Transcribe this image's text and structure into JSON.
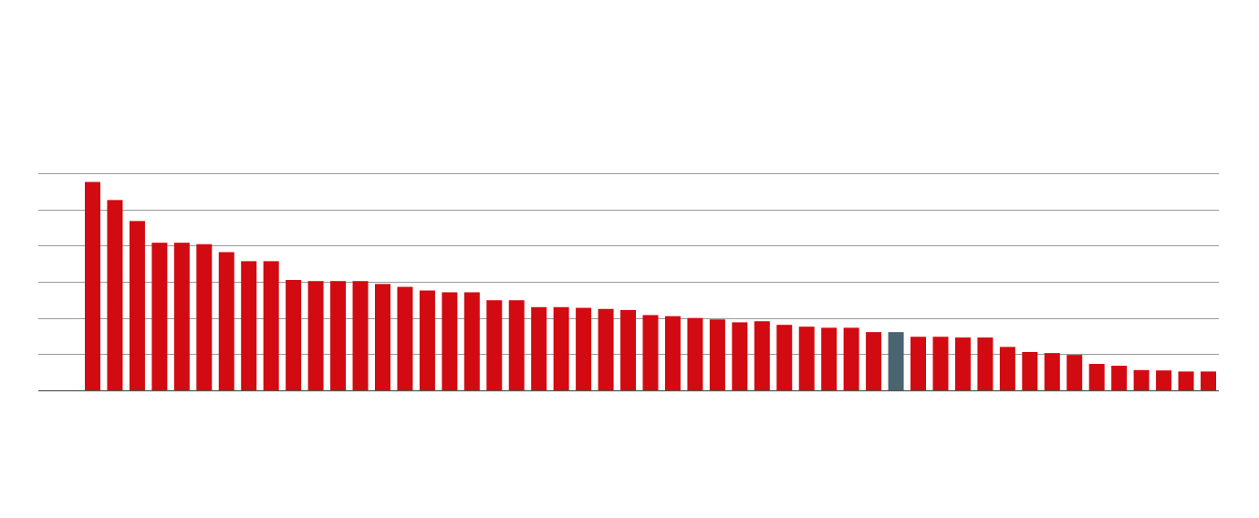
{
  "colors": {
    "bar": "#d20a11",
    "highlight": "#4a6470",
    "grid": "#9a9a9a",
    "axis": "#555555",
    "background": "#ffffff"
  },
  "chart_data": {
    "type": "bar",
    "title": "",
    "xlabel": "",
    "ylabel": "",
    "ylim": [
      0,
      60
    ],
    "grid": true,
    "gridlines": [
      10,
      20,
      30,
      40,
      50,
      60
    ],
    "highlight_index": 36,
    "values": [
      57.6,
      52.6,
      46.8,
      40.8,
      40.8,
      40.4,
      38.2,
      35.7,
      35.7,
      30.5,
      30.2,
      30.2,
      30.2,
      29.4,
      28.6,
      27.6,
      27.1,
      27.1,
      24.9,
      24.9,
      23.0,
      23.0,
      22.8,
      22.5,
      22.2,
      20.8,
      20.5,
      20.0,
      19.6,
      18.8,
      19.1,
      18.1,
      17.6,
      17.3,
      17.3,
      16.1,
      16.1,
      14.8,
      14.8,
      14.6,
      14.6,
      12.0,
      10.6,
      10.3,
      9.8,
      7.3,
      6.8,
      5.6,
      5.5,
      5.2,
      5.2
    ]
  }
}
